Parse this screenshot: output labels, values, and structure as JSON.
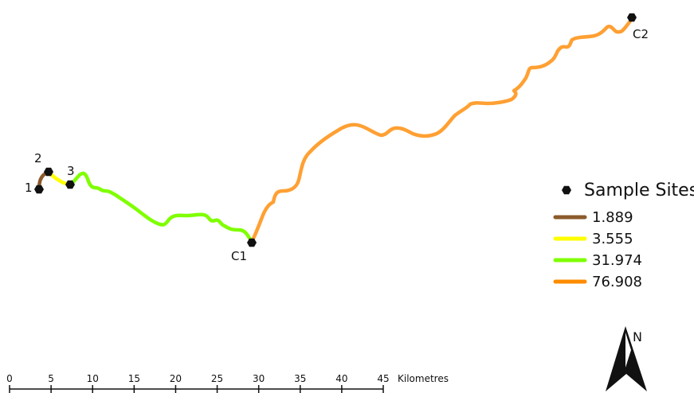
{
  "sites": [
    {
      "id": "site-1",
      "label": "1"
    },
    {
      "id": "site-2",
      "label": "2"
    },
    {
      "id": "site-3",
      "label": "3"
    },
    {
      "id": "site-c1",
      "label": "C1"
    },
    {
      "id": "site-c2",
      "label": "C2"
    }
  ],
  "routes": [
    {
      "id": "route-1-2",
      "value": "1.889",
      "color": "#8B5A2B"
    },
    {
      "id": "route-2-3",
      "value": "3.555",
      "color": "#FFFF00"
    },
    {
      "id": "route-3-c1",
      "value": "31.974",
      "color": "#7FFF00"
    },
    {
      "id": "route-c1-c2",
      "value": "76.908",
      "color": "#FFA033"
    }
  ],
  "legend": {
    "title": "Sample Sites",
    "items": [
      {
        "label": "1.889",
        "color": "#8B5A2B"
      },
      {
        "label": "3.555",
        "color": "#FFFF00"
      },
      {
        "label": "31.974",
        "color": "#7FFF00"
      },
      {
        "label": "76.908",
        "color": "#FF8C00"
      }
    ]
  },
  "scale_bar": {
    "ticks": [
      "0",
      "5",
      "10",
      "15",
      "20",
      "25",
      "30",
      "35",
      "40",
      "45"
    ],
    "unit": "Kilometres"
  },
  "north_arrow": {
    "label": "N"
  }
}
